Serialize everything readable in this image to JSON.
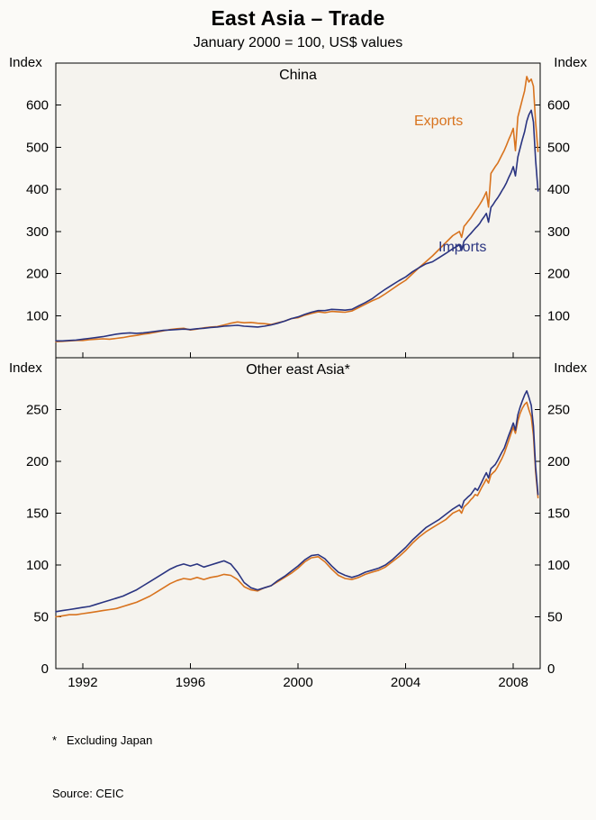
{
  "header": {
    "title": "East Asia – Trade",
    "subtitle": "January 2000 = 100, US$ values"
  },
  "labels": {
    "index": "Index"
  },
  "footnotes": {
    "note": "*   Excluding Japan",
    "source": "Source: CEIC"
  },
  "colors": {
    "exports": "#D8731E",
    "imports": "#2A3480",
    "axis": "#000000",
    "panel_bg": "#f5f3ee"
  },
  "chart_data": [
    {
      "type": "line",
      "title": "China",
      "ylabel": "Index",
      "xlim": [
        1991,
        2009
      ],
      "ylim": [
        0,
        700
      ],
      "yticks": [
        100,
        200,
        300,
        400,
        500,
        600
      ],
      "xticks": [
        1992,
        1996,
        2000,
        2004,
        2008
      ],
      "x": [
        1991,
        1991.25,
        1991.5,
        1991.75,
        1992,
        1992.25,
        1992.5,
        1992.75,
        1993,
        1993.25,
        1993.5,
        1993.75,
        1994,
        1994.25,
        1994.5,
        1994.75,
        1995,
        1995.25,
        1995.5,
        1995.75,
        1996,
        1996.25,
        1996.5,
        1996.75,
        1997,
        1997.25,
        1997.5,
        1997.75,
        1998,
        1998.25,
        1998.5,
        1998.75,
        1999,
        1999.25,
        1999.5,
        1999.75,
        2000,
        2000.25,
        2000.5,
        2000.75,
        2001,
        2001.25,
        2001.5,
        2001.75,
        2002,
        2002.25,
        2002.5,
        2002.75,
        2003,
        2003.25,
        2003.5,
        2003.75,
        2004,
        2004.25,
        2004.5,
        2004.75,
        2005,
        2005.25,
        2005.5,
        2005.75,
        2006,
        2006.08,
        2006.17,
        2006.25,
        2006.33,
        2006.42,
        2006.5,
        2006.58,
        2006.67,
        2006.75,
        2006.83,
        2006.92,
        2007,
        2007.08,
        2007.17,
        2007.25,
        2007.33,
        2007.42,
        2007.5,
        2007.58,
        2007.67,
        2007.75,
        2007.83,
        2007.92,
        2008,
        2008.08,
        2008.17,
        2008.25,
        2008.33,
        2008.42,
        2008.5,
        2008.58,
        2008.67,
        2008.75,
        2008.83,
        2008.92
      ],
      "series": [
        {
          "name": "Exports",
          "color_key": "exports",
          "values": [
            38,
            39,
            40,
            41,
            41,
            43,
            44,
            45,
            44,
            46,
            48,
            51,
            53,
            56,
            58,
            61,
            64,
            67,
            69,
            70,
            66,
            68,
            71,
            73,
            74,
            78,
            82,
            85,
            83,
            84,
            82,
            81,
            79,
            83,
            87,
            93,
            95,
            101,
            105,
            109,
            107,
            110,
            109,
            108,
            111,
            119,
            127,
            135,
            142,
            152,
            163,
            174,
            184,
            199,
            214,
            228,
            242,
            258,
            274,
            290,
            300,
            286,
            312,
            318,
            325,
            332,
            340,
            348,
            356,
            364,
            372,
            383,
            394,
            358,
            438,
            446,
            454,
            462,
            472,
            482,
            493,
            505,
            518,
            531,
            545,
            492,
            572,
            592,
            612,
            634,
            668,
            655,
            662,
            645,
            560,
            490
          ]
        },
        {
          "name": "Imports",
          "color_key": "imports",
          "values": [
            40,
            40,
            41,
            42,
            44,
            46,
            48,
            50,
            53,
            56,
            58,
            59,
            58,
            59,
            61,
            63,
            65,
            66,
            67,
            68,
            67,
            69,
            70,
            72,
            73,
            75,
            76,
            77,
            75,
            74,
            73,
            75,
            78,
            82,
            87,
            93,
            97,
            103,
            108,
            112,
            112,
            115,
            114,
            113,
            115,
            123,
            131,
            140,
            152,
            163,
            173,
            183,
            192,
            204,
            214,
            223,
            228,
            238,
            248,
            259,
            268,
            255,
            277,
            283,
            289,
            295,
            301,
            307,
            313,
            319,
            327,
            335,
            343,
            322,
            357,
            364,
            372,
            380,
            388,
            397,
            406,
            416,
            428,
            440,
            454,
            432,
            477,
            497,
            517,
            537,
            562,
            577,
            588,
            560,
            470,
            396
          ]
        }
      ]
    },
    {
      "type": "line",
      "title": "Other east Asia*",
      "ylabel": "Index",
      "xlim": [
        1991,
        2009
      ],
      "ylim": [
        0,
        300
      ],
      "yticks": [
        0,
        50,
        100,
        150,
        200,
        250
      ],
      "xticks": [
        1992,
        1996,
        2000,
        2004,
        2008
      ],
      "x": [
        1991,
        1991.25,
        1991.5,
        1991.75,
        1992,
        1992.25,
        1992.5,
        1992.75,
        1993,
        1993.25,
        1993.5,
        1993.75,
        1994,
        1994.25,
        1994.5,
        1994.75,
        1995,
        1995.25,
        1995.5,
        1995.75,
        1996,
        1996.25,
        1996.5,
        1996.75,
        1997,
        1997.25,
        1997.5,
        1997.75,
        1998,
        1998.25,
        1998.5,
        1998.75,
        1999,
        1999.25,
        1999.5,
        1999.75,
        2000,
        2000.25,
        2000.5,
        2000.75,
        2001,
        2001.25,
        2001.5,
        2001.75,
        2002,
        2002.25,
        2002.5,
        2002.75,
        2003,
        2003.25,
        2003.5,
        2003.75,
        2004,
        2004.25,
        2004.5,
        2004.75,
        2005,
        2005.25,
        2005.5,
        2005.75,
        2006,
        2006.08,
        2006.17,
        2006.25,
        2006.33,
        2006.42,
        2006.5,
        2006.58,
        2006.67,
        2006.75,
        2006.83,
        2006.92,
        2007,
        2007.08,
        2007.17,
        2007.25,
        2007.33,
        2007.42,
        2007.5,
        2007.58,
        2007.67,
        2007.75,
        2007.83,
        2007.92,
        2008,
        2008.08,
        2008.17,
        2008.25,
        2008.33,
        2008.42,
        2008.5,
        2008.58,
        2008.67,
        2008.75,
        2008.83,
        2008.92
      ],
      "series": [
        {
          "name": "Exports",
          "color_key": "exports",
          "values": [
            50,
            51,
            52,
            52,
            53,
            54,
            55,
            56,
            57,
            58,
            60,
            62,
            64,
            67,
            70,
            74,
            78,
            82,
            85,
            87,
            86,
            88,
            86,
            88,
            89,
            91,
            90,
            86,
            79,
            76,
            75,
            78,
            80,
            84,
            88,
            92,
            97,
            103,
            107,
            108,
            103,
            96,
            90,
            87,
            86,
            88,
            91,
            93,
            95,
            98,
            103,
            108,
            114,
            121,
            127,
            132,
            136,
            140,
            144,
            150,
            153,
            150,
            156,
            158,
            160,
            163,
            165,
            168,
            167,
            171,
            175,
            179,
            183,
            179,
            187,
            189,
            191,
            195,
            199,
            203,
            208,
            214,
            220,
            227,
            233,
            227,
            239,
            246,
            251,
            255,
            257,
            250,
            243,
            225,
            190,
            165
          ]
        },
        {
          "name": "Imports",
          "color_key": "imports",
          "values": [
            55,
            56,
            57,
            58,
            59,
            60,
            62,
            64,
            66,
            68,
            70,
            73,
            76,
            80,
            84,
            88,
            92,
            96,
            99,
            101,
            99,
            101,
            98,
            100,
            102,
            104,
            101,
            93,
            83,
            78,
            76,
            78,
            80,
            85,
            89,
            94,
            99,
            105,
            109,
            110,
            106,
            99,
            93,
            90,
            88,
            90,
            93,
            95,
            97,
            100,
            105,
            111,
            117,
            124,
            130,
            136,
            140,
            144,
            149,
            154,
            158,
            155,
            162,
            164,
            166,
            168,
            171,
            174,
            172,
            176,
            180,
            185,
            189,
            184,
            193,
            195,
            197,
            201,
            205,
            209,
            213,
            219,
            225,
            231,
            237,
            230,
            245,
            252,
            258,
            264,
            268,
            262,
            254,
            234,
            195,
            168
          ]
        }
      ]
    }
  ]
}
